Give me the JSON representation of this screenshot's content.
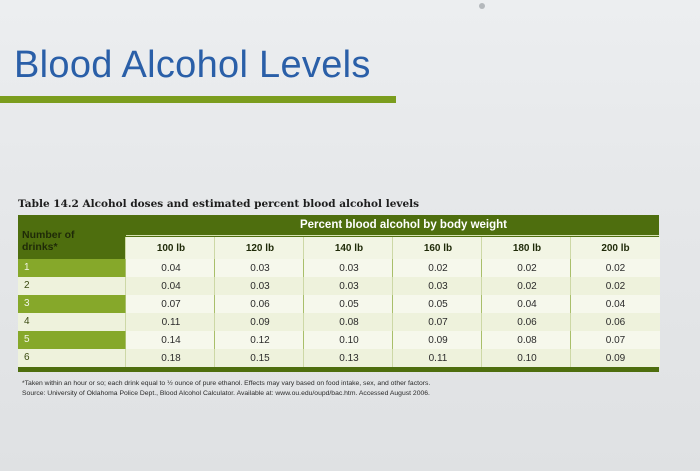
{
  "title": "Blood Alcohol Levels",
  "table": {
    "caption": "Table 14.2 Alcohol doses and estimated percent blood alcohol levels",
    "group_header": "Percent blood alcohol by body weight",
    "row_header": "Number of drinks*",
    "columns": [
      "100 lb",
      "120 lb",
      "140 lb",
      "160 lb",
      "180 lb",
      "200 lb"
    ],
    "rows": [
      {
        "drinks": "1",
        "values": [
          "0.04",
          "0.03",
          "0.03",
          "0.02",
          "0.02",
          "0.02"
        ]
      },
      {
        "drinks": "2",
        "values": [
          "0.04",
          "0.03",
          "0.03",
          "0.03",
          "0.02",
          "0.02"
        ]
      },
      {
        "drinks": "3",
        "values": [
          "0.07",
          "0.06",
          "0.05",
          "0.05",
          "0.04",
          "0.04"
        ]
      },
      {
        "drinks": "4",
        "values": [
          "0.11",
          "0.09",
          "0.08",
          "0.07",
          "0.06",
          "0.06"
        ]
      },
      {
        "drinks": "5",
        "values": [
          "0.14",
          "0.12",
          "0.10",
          "0.09",
          "0.08",
          "0.07"
        ]
      },
      {
        "drinks": "6",
        "values": [
          "0.18",
          "0.15",
          "0.13",
          "0.11",
          "0.10",
          "0.09"
        ]
      }
    ]
  },
  "footnotes": {
    "note": "*Taken within an hour or so; each drink equal to ½ ounce of pure ethanol. Effects may vary based on food intake, sex, and other factors.",
    "source": "Source: University of Oklahoma Police Dept., Blood Alcohol Calculator. Available at: www.ou.edu/oupd/bac.htm. Accessed August 2006."
  },
  "colors": {
    "title": "#2a5fa8",
    "accent_rule": "#7b9d1e",
    "table_dark": "#4e6e0e",
    "row_green": "#86a82a",
    "row_light": "#eef2dc"
  }
}
